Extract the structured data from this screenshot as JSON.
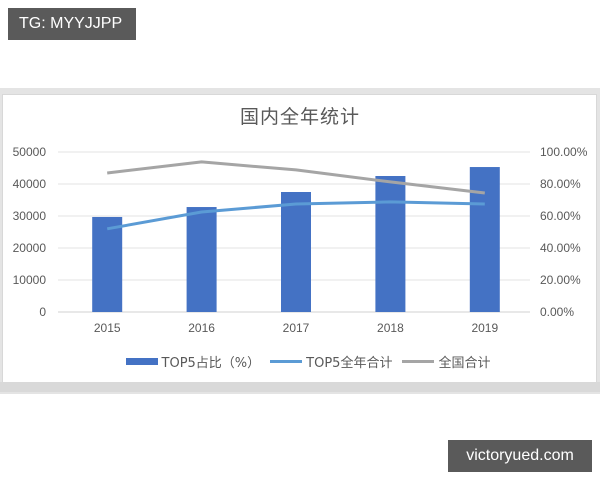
{
  "watermarks": {
    "top_left": "TG: MYYJJPP",
    "bottom_right": "victoryued.com"
  },
  "chart": {
    "title": "国内全年统计",
    "left_axis_ticks": [
      "0",
      "10000",
      "20000",
      "30000",
      "40000",
      "50000"
    ],
    "right_axis_ticks": [
      "0.00%",
      "20.00%",
      "40.00%",
      "60.00%",
      "80.00%",
      "100.00%"
    ],
    "categories": [
      "2015",
      "2016",
      "2017",
      "2018",
      "2019"
    ],
    "legend": [
      {
        "label": "TOP5占比（%）",
        "type": "bar",
        "color": "#4472c4"
      },
      {
        "label": "TOP5全年合计",
        "type": "line",
        "color": "#5b9bd5"
      },
      {
        "label": "全国合计",
        "type": "line",
        "color": "#a5a5a5"
      }
    ]
  },
  "chart_data": {
    "type": "bar",
    "title": "国内全年统计",
    "categories": [
      "2015",
      "2016",
      "2017",
      "2018",
      "2019"
    ],
    "series": [
      {
        "name": "TOP5占比（%）",
        "type": "bar",
        "axis": "left",
        "color": "#4472c4",
        "values": [
          29700,
          32800,
          37500,
          42500,
          45300
        ]
      },
      {
        "name": "TOP5全年合计",
        "type": "line",
        "axis": "right",
        "color": "#5b9bd5",
        "values": [
          0.52,
          0.625,
          0.675,
          0.688,
          0.675
        ]
      },
      {
        "name": "全国合计",
        "type": "line",
        "axis": "right",
        "color": "#a5a5a5",
        "values": [
          0.869,
          0.938,
          0.888,
          0.813,
          0.744
        ]
      }
    ],
    "xlabel": "",
    "ylabel": "",
    "ylim": [
      0,
      50000
    ],
    "y2lim": [
      0,
      1.0
    ],
    "y_ticks": [
      0,
      10000,
      20000,
      30000,
      40000,
      50000
    ],
    "y2_ticks": [
      "0.00%",
      "20.00%",
      "40.00%",
      "60.00%",
      "80.00%",
      "100.00%"
    ],
    "grid": true,
    "legend_position": "bottom"
  }
}
